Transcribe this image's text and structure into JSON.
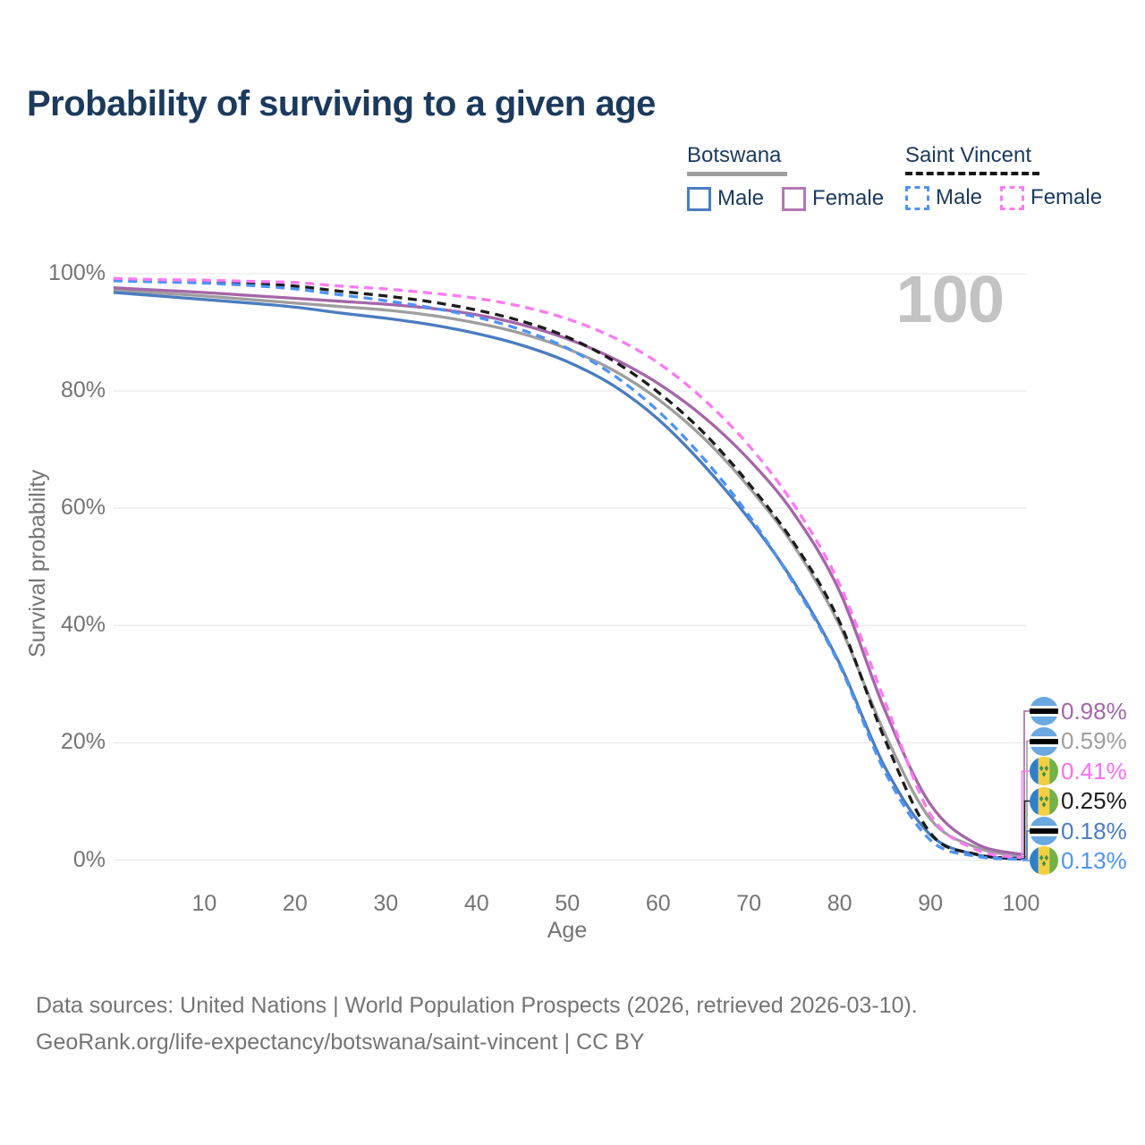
{
  "title": "Probability of surviving to a given age",
  "watermark": "100",
  "legend": {
    "groups": [
      {
        "name": "Botswana",
        "line_style": "solid",
        "underline_color": "#9e9e9e",
        "items": [
          {
            "label": "Male",
            "color": "#4a7cc0"
          },
          {
            "label": "Female",
            "color": "#b478b4"
          }
        ]
      },
      {
        "name": "Saint Vincent",
        "line_style": "dashed",
        "underline_color": "#141414",
        "items": [
          {
            "label": "Male",
            "color": "#4e93f5"
          },
          {
            "label": "Female",
            "color": "#fb7af2"
          }
        ]
      }
    ]
  },
  "chart_data": {
    "type": "line",
    "title": "Probability of surviving to a given age",
    "xlabel": "Age",
    "ylabel": "Survival probability",
    "xlim": [
      0,
      100
    ],
    "ylim": [
      0,
      100
    ],
    "grid": true,
    "x_ticks": [
      10,
      20,
      30,
      40,
      50,
      60,
      70,
      80,
      90,
      100
    ],
    "y_ticks": [
      0,
      20,
      40,
      60,
      80,
      100
    ],
    "y_tick_suffix": "%",
    "x": [
      0,
      5,
      10,
      15,
      20,
      25,
      30,
      35,
      40,
      45,
      50,
      55,
      60,
      65,
      70,
      75,
      80,
      85,
      90,
      95,
      100
    ],
    "series": [
      {
        "name": "Botswana",
        "role": "overall",
        "color": "#9e9e9e",
        "dash": false,
        "values": [
          97.2,
          96.7,
          96.2,
          95.6,
          95.0,
          94.4,
          93.8,
          92.9,
          91.6,
          89.8,
          87.2,
          83.6,
          78.6,
          72.0,
          63.6,
          53.5,
          40.0,
          21.5,
          7.0,
          2.2,
          0.59
        ]
      },
      {
        "name": "Botswana Female",
        "role": "female",
        "color": "#a466a8",
        "dash": false,
        "values": [
          97.6,
          97.2,
          96.8,
          96.3,
          95.8,
          95.3,
          94.8,
          94.1,
          93.0,
          91.3,
          88.9,
          85.6,
          81.3,
          75.6,
          68.3,
          59.0,
          45.8,
          25.5,
          9.5,
          2.8,
          0.98
        ]
      },
      {
        "name": "Botswana Male",
        "role": "male",
        "color": "#4a7cc0",
        "dash": false,
        "values": [
          96.8,
          96.2,
          95.6,
          95.0,
          94.3,
          93.3,
          92.4,
          91.3,
          89.8,
          87.8,
          85.0,
          81.0,
          75.2,
          67.4,
          58.2,
          47.3,
          33.5,
          15.8,
          4.3,
          0.95,
          0.18
        ]
      },
      {
        "name": "Saint Vincent",
        "role": "overall",
        "color": "#1c1c1c",
        "dash": true,
        "values": [
          99.0,
          98.8,
          98.6,
          98.3,
          97.9,
          97.0,
          96.2,
          95.2,
          93.8,
          91.9,
          89.2,
          85.2,
          79.8,
          72.9,
          64.2,
          54.0,
          40.6,
          20.5,
          4.6,
          1.0,
          0.25
        ]
      },
      {
        "name": "Saint Vincent Male",
        "role": "male",
        "color": "#4e93f5",
        "dash": true,
        "values": [
          98.8,
          98.6,
          98.4,
          98.0,
          97.4,
          96.4,
          95.4,
          94.2,
          92.6,
          90.4,
          87.3,
          82.8,
          76.6,
          68.5,
          58.8,
          47.0,
          33.2,
          15.0,
          3.4,
          0.65,
          0.13
        ]
      },
      {
        "name": "Saint Vincent Female",
        "role": "female",
        "color": "#fb7af2",
        "dash": true,
        "values": [
          99.2,
          99.0,
          98.9,
          98.7,
          98.5,
          97.9,
          97.4,
          96.7,
          95.8,
          94.4,
          92.3,
          89.2,
          84.8,
          78.6,
          70.7,
          60.5,
          47.0,
          27.0,
          7.8,
          1.8,
          0.41
        ]
      }
    ],
    "end_labels": [
      {
        "series": "Botswana Female",
        "value": "0.98%",
        "color": "#a466a8",
        "flag": "botswana"
      },
      {
        "series": "Botswana",
        "value": "0.59%",
        "color": "#9e9e9e",
        "flag": "botswana"
      },
      {
        "series": "Saint Vincent Female",
        "value": "0.41%",
        "color": "#fb6ef2",
        "flag": "saint-vincent"
      },
      {
        "series": "Saint Vincent",
        "value": "0.25%",
        "color": "#1c1c1c",
        "flag": "saint-vincent"
      },
      {
        "series": "Botswana Male",
        "value": "0.18%",
        "color": "#4a7cc0",
        "flag": "botswana"
      },
      {
        "series": "Saint Vincent Male",
        "value": "0.13%",
        "color": "#4e93f5",
        "flag": "saint-vincent"
      }
    ]
  },
  "flag_colors": {
    "botswana": {
      "blue": "#69a8e0",
      "white": "#ffffff",
      "black": "#000000"
    },
    "saint_vincent": {
      "blue": "#2f80c8",
      "yellow": "#f3cf41",
      "green": "#74b244",
      "diamond": "#3f9149"
    }
  },
  "footer": {
    "line1": "Data sources: United Nations | World Population Prospects (2026, retrieved 2026-03-10).",
    "line2": "GeoRank.org/life-expectancy/botswana/saint-vincent | CC BY"
  }
}
